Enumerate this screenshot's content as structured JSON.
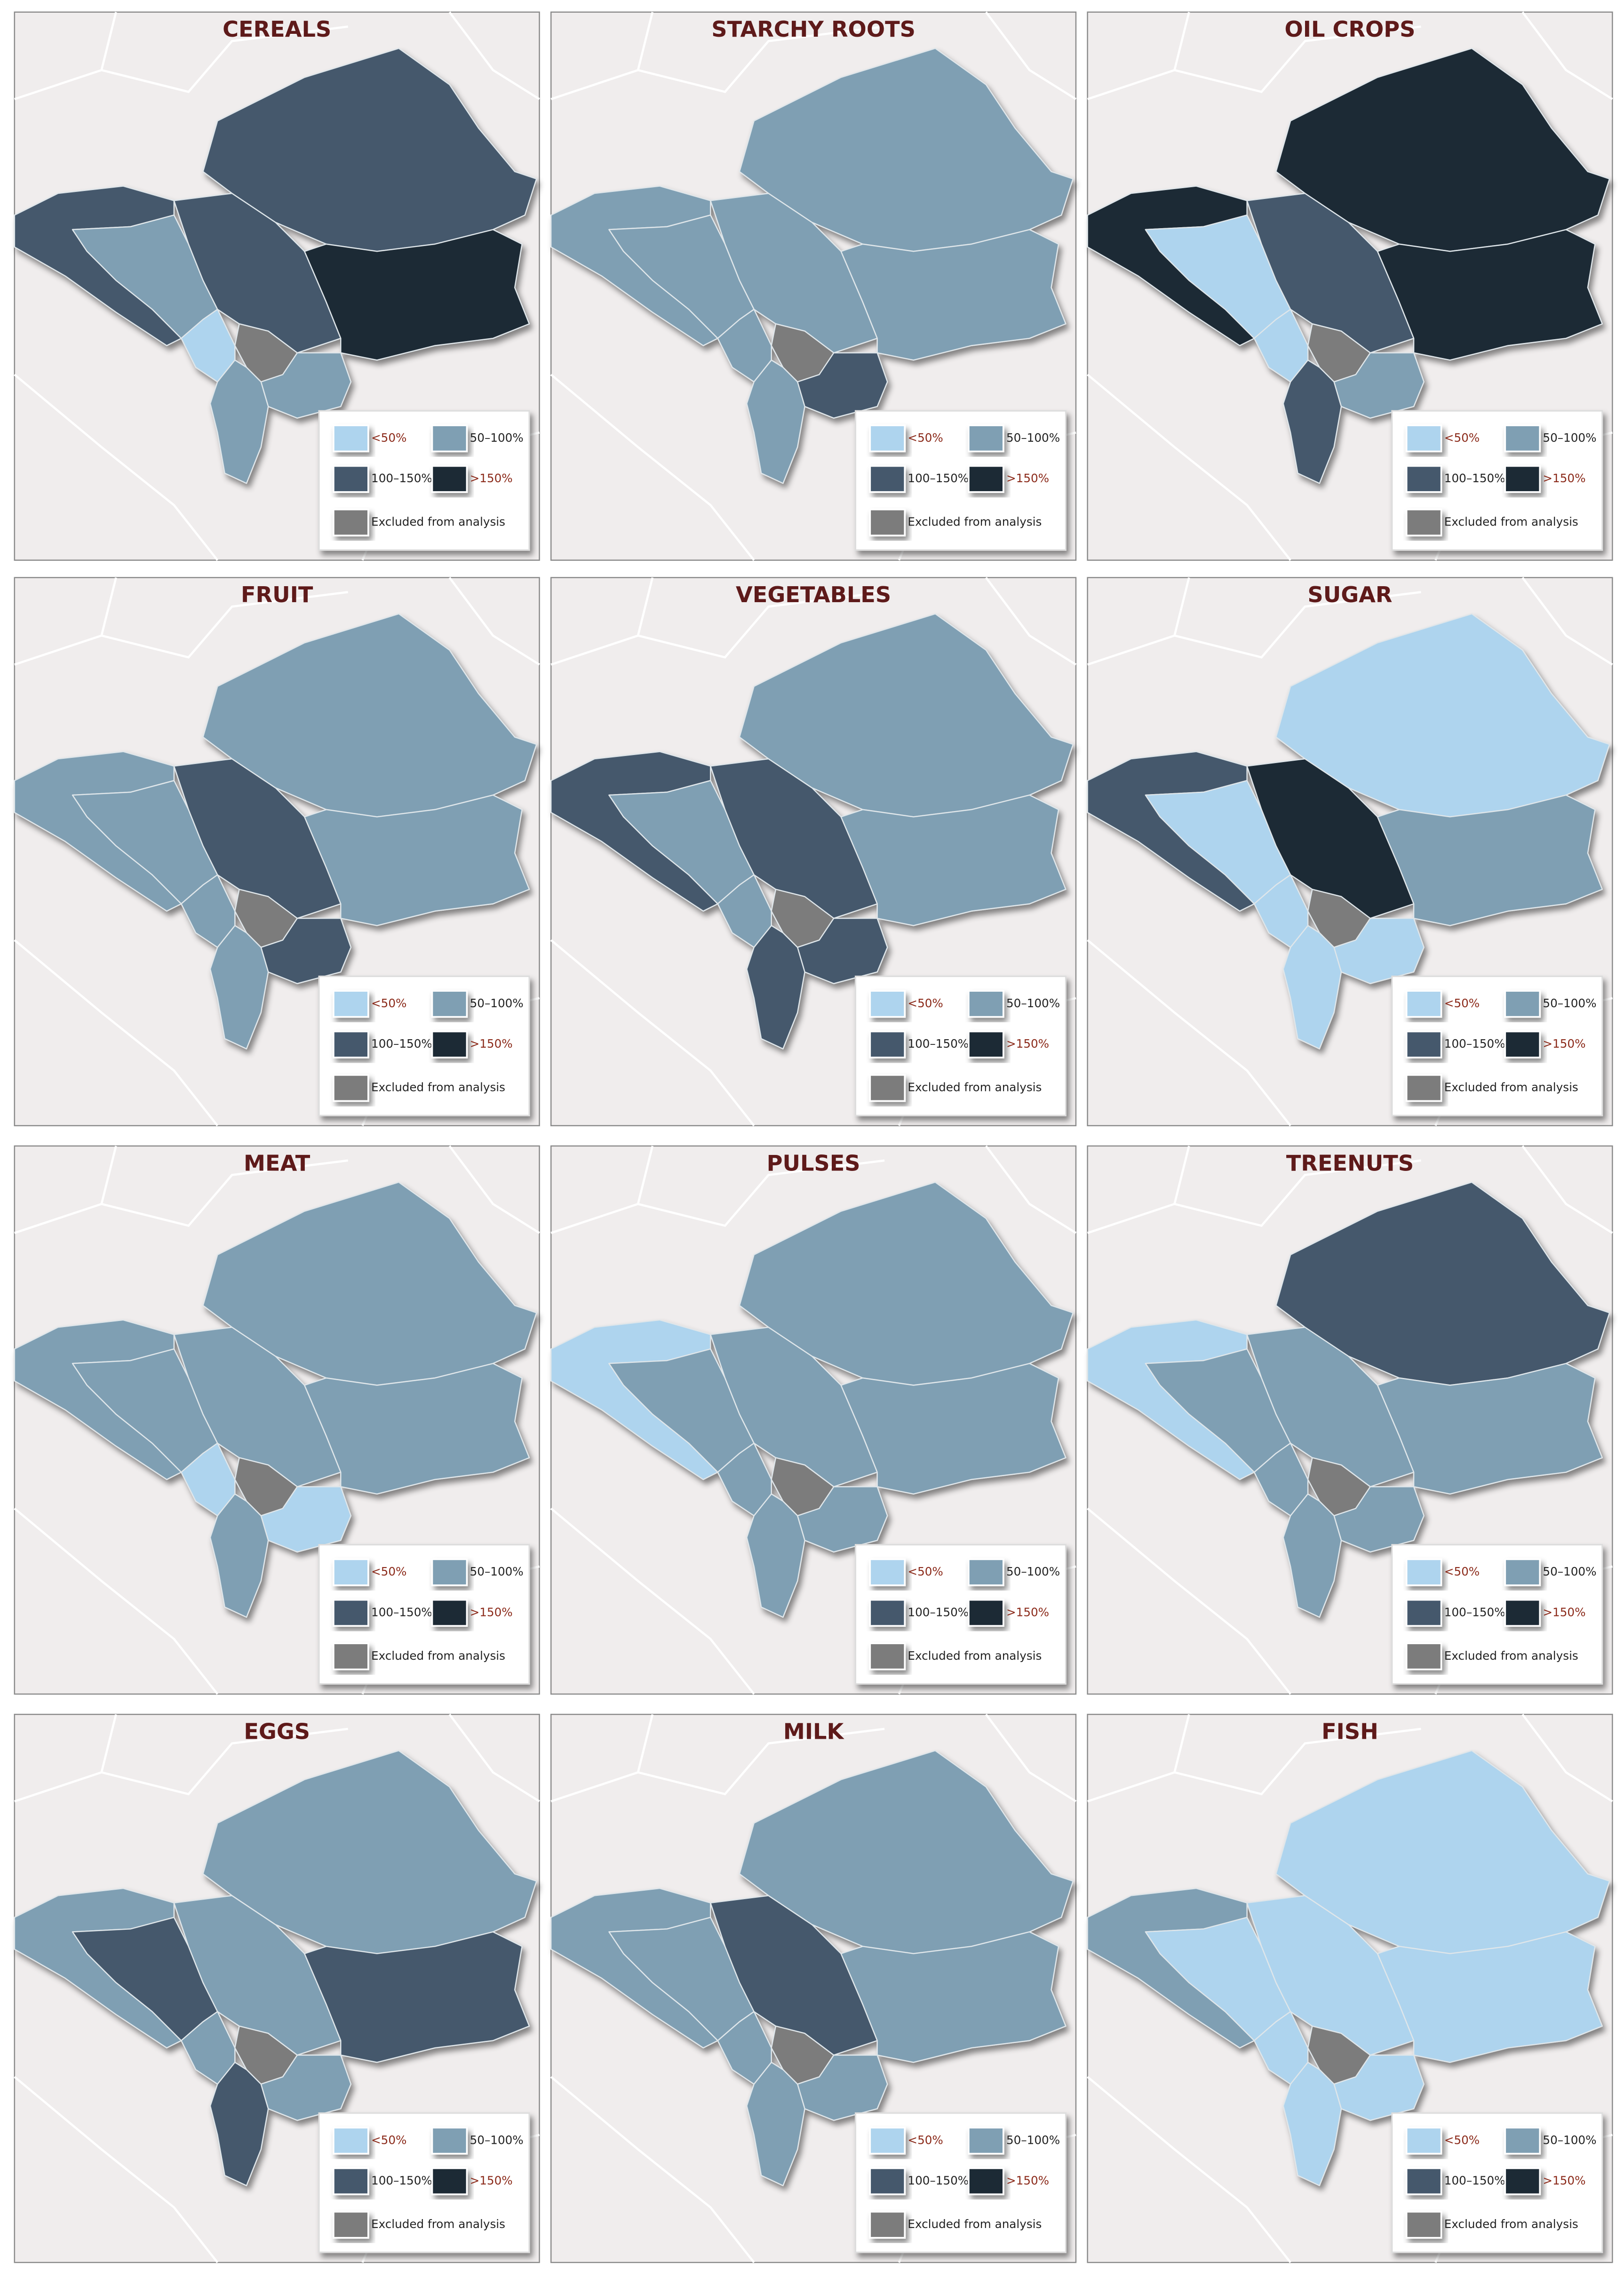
{
  "legend": {
    "items": [
      {
        "label": "<50%",
        "color": "#aed4ee",
        "label_color": "#8b2a1a"
      },
      {
        "label": "50–100%",
        "color": "#7f9fb3",
        "label_color": "#222222"
      },
      {
        "label": "100–150%",
        "color": "#44596c",
        "label_color": "#222222"
      },
      {
        "label": ">150%",
        "color": "#1f2a36",
        "label_color": "#8b2a1a"
      },
      {
        "label": "Excluded from analysis",
        "color": "#7c7c7c",
        "label_color": "#222222"
      }
    ]
  },
  "panels": [
    {
      "title": "CEREALS",
      "classes": [
        2,
        1,
        2,
        0,
        4,
        1,
        1,
        2,
        3
      ]
    },
    {
      "title": "STARCHY ROOTS",
      "classes": [
        1,
        1,
        1,
        1,
        4,
        2,
        1,
        1,
        1
      ]
    },
    {
      "title": "OIL CROPS",
      "classes": [
        3,
        0,
        2,
        0,
        4,
        1,
        2,
        3,
        3
      ]
    },
    {
      "title": "FRUIT",
      "classes": [
        1,
        1,
        2,
        1,
        4,
        2,
        1,
        1,
        1
      ]
    },
    {
      "title": "VEGETABLES",
      "classes": [
        2,
        1,
        2,
        1,
        4,
        2,
        2,
        1,
        1
      ]
    },
    {
      "title": "SUGAR",
      "classes": [
        2,
        0,
        3,
        0,
        4,
        0,
        0,
        0,
        1
      ]
    },
    {
      "title": "MEAT",
      "classes": [
        1,
        1,
        1,
        0,
        4,
        0,
        1,
        1,
        1
      ]
    },
    {
      "title": "PULSES",
      "classes": [
        0,
        1,
        1,
        1,
        4,
        1,
        1,
        1,
        1
      ]
    },
    {
      "title": "TREENUTS",
      "classes": [
        0,
        1,
        1,
        1,
        4,
        1,
        1,
        2,
        1
      ]
    },
    {
      "title": "EGGS",
      "classes": [
        1,
        2,
        1,
        1,
        4,
        1,
        2,
        1,
        2
      ]
    },
    {
      "title": "MILK",
      "classes": [
        1,
        1,
        2,
        1,
        4,
        1,
        1,
        1,
        1
      ]
    },
    {
      "title": "FISH",
      "classes": [
        1,
        0,
        0,
        0,
        4,
        0,
        0,
        0,
        0
      ]
    }
  ]
}
